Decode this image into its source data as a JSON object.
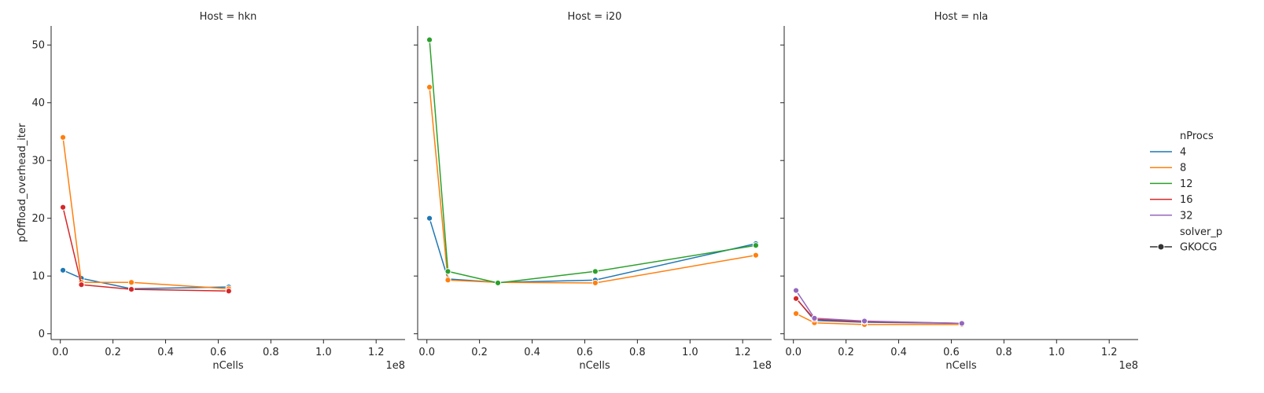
{
  "chart_data": {
    "type": "line",
    "xlabel": "nCells",
    "ylabel": "pOffload_overhead_iter",
    "x_offset_text": "1e8",
    "xlim": [
      -0.035,
      1.31
    ],
    "ylim": [
      -1.0,
      53.3
    ],
    "xticks": [
      0.0,
      0.2,
      0.4,
      0.6,
      0.8,
      1.0,
      1.2
    ],
    "xtick_labels": [
      "0.0",
      "0.2",
      "0.4",
      "0.6",
      "0.8",
      "1.0",
      "1.2"
    ],
    "yticks": [
      0,
      10,
      20,
      30,
      40,
      50
    ],
    "ytick_labels": [
      "0",
      "10",
      "20",
      "30",
      "40",
      "50"
    ],
    "grid": false,
    "legend": {
      "placement": "right",
      "title": "nProcs",
      "entries": [
        {
          "label": "4",
          "color": "#1f77b4"
        },
        {
          "label": "8",
          "color": "#ff7f0e"
        },
        {
          "label": "12",
          "color": "#2ca02c"
        },
        {
          "label": "16",
          "color": "#d62728"
        },
        {
          "label": "32",
          "color": "#9467bd"
        }
      ],
      "style_title": "solver_p",
      "style_entries": [
        {
          "label": "GKOCG"
        }
      ]
    },
    "panels": [
      {
        "title": "Host = hkn",
        "series": [
          {
            "name": "4",
            "color": "#1f77b4",
            "x": [
              0.01,
              0.08,
              0.27,
              0.64
            ],
            "y": [
              11.0,
              9.6,
              7.8,
              8.1
            ]
          },
          {
            "name": "8",
            "color": "#ff7f0e",
            "x": [
              0.01,
              0.08,
              0.27,
              0.64
            ],
            "y": [
              34.0,
              8.9,
              8.9,
              7.8
            ]
          },
          {
            "name": "16",
            "color": "#d62728",
            "x": [
              0.01,
              0.08,
              0.27,
              0.64
            ],
            "y": [
              21.9,
              8.5,
              7.7,
              7.4
            ]
          }
        ]
      },
      {
        "title": "Host = i20",
        "series": [
          {
            "name": "4",
            "color": "#1f77b4",
            "x": [
              0.01,
              0.08,
              0.27,
              0.64,
              1.25
            ],
            "y": [
              20.0,
              9.5,
              8.9,
              9.3,
              15.6
            ]
          },
          {
            "name": "8",
            "color": "#ff7f0e",
            "x": [
              0.01,
              0.08,
              0.27,
              0.64,
              1.25
            ],
            "y": [
              42.7,
              9.3,
              8.9,
              8.8,
              13.6
            ]
          },
          {
            "name": "12",
            "color": "#2ca02c",
            "x": [
              0.01,
              0.08,
              0.27,
              0.64,
              1.25
            ],
            "y": [
              50.9,
              10.8,
              8.8,
              10.8,
              15.3
            ]
          }
        ]
      },
      {
        "title": "Host = nla",
        "series": [
          {
            "name": "4",
            "color": "#1f77b4",
            "x": [
              0.01,
              0.08,
              0.27,
              0.64
            ],
            "y": [
              6.2,
              2.3,
              2.0,
              1.8
            ]
          },
          {
            "name": "8",
            "color": "#ff7f0e",
            "x": [
              0.01,
              0.08,
              0.27,
              0.64
            ],
            "y": [
              3.5,
              1.9,
              1.6,
              1.6
            ]
          },
          {
            "name": "16",
            "color": "#d62728",
            "x": [
              0.01,
              0.08,
              0.27,
              0.64
            ],
            "y": [
              6.1,
              2.5,
              2.1,
              1.8
            ]
          },
          {
            "name": "32",
            "color": "#9467bd",
            "x": [
              0.01,
              0.08,
              0.27,
              0.64
            ],
            "y": [
              7.5,
              2.7,
              2.2,
              1.8
            ]
          }
        ]
      }
    ]
  }
}
